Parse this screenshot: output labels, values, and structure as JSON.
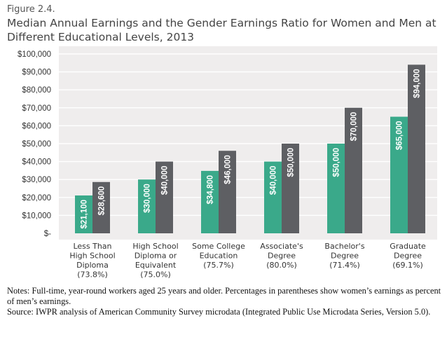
{
  "figure_label": "Figure 2.4.",
  "title": "Median Annual Earnings and the Gender Earnings Ratio for Women and Men at Different Educational Levels, 2013",
  "colors": {
    "women": "#3aa98a",
    "men": "#5e5f63",
    "panel": "#efeded",
    "grid": "#ffffff"
  },
  "chart_data": {
    "type": "bar",
    "categories": [
      [
        "Less Than",
        "High School",
        "Diploma",
        "(73.8%)"
      ],
      [
        "High School",
        "Diploma or",
        "Equivalent",
        "(75.0%)"
      ],
      [
        "Some College",
        "Education",
        "(75.7%)"
      ],
      [
        "Associate's",
        "Degree",
        "(80.0%)"
      ],
      [
        "Bachelor's",
        "Degree",
        "(71.4%)"
      ],
      [
        "Graduate",
        "Degree",
        "(69.1%)"
      ]
    ],
    "series": [
      {
        "values": [
          21100,
          30000,
          34800,
          40000,
          50000,
          65000
        ],
        "labels": [
          "$21,100",
          "$30,000",
          "$34,800",
          "$40,000",
          "$50,000",
          "$65,000"
        ]
      },
      {
        "values": [
          28600,
          40000,
          46000,
          50000,
          70000,
          94000
        ],
        "labels": [
          "$28,600",
          "$40,000",
          "$46,000",
          "$50,000",
          "$70,000",
          "$94,000"
        ]
      }
    ],
    "ylim": [
      0,
      100000
    ],
    "yticks": [
      0,
      10000,
      20000,
      30000,
      40000,
      50000,
      60000,
      70000,
      80000,
      90000,
      100000
    ],
    "ytick_labels": [
      "$-",
      "$10,000",
      "$20,000",
      "$30,000",
      "$40,000",
      "$50,000",
      "$60,000",
      "$70,000",
      "$80,000",
      "$90,000",
      "$100,000"
    ],
    "grid": true
  },
  "notes": [
    "Notes: Full-time, year-round workers aged 25 years and older. Percentages in parentheses show women’s earnings as percent of men’s earnings.",
    "Source: IWPR analysis of American Community Survey microdata (Integrated Public Use Microdata Series, Version 5.0)."
  ]
}
